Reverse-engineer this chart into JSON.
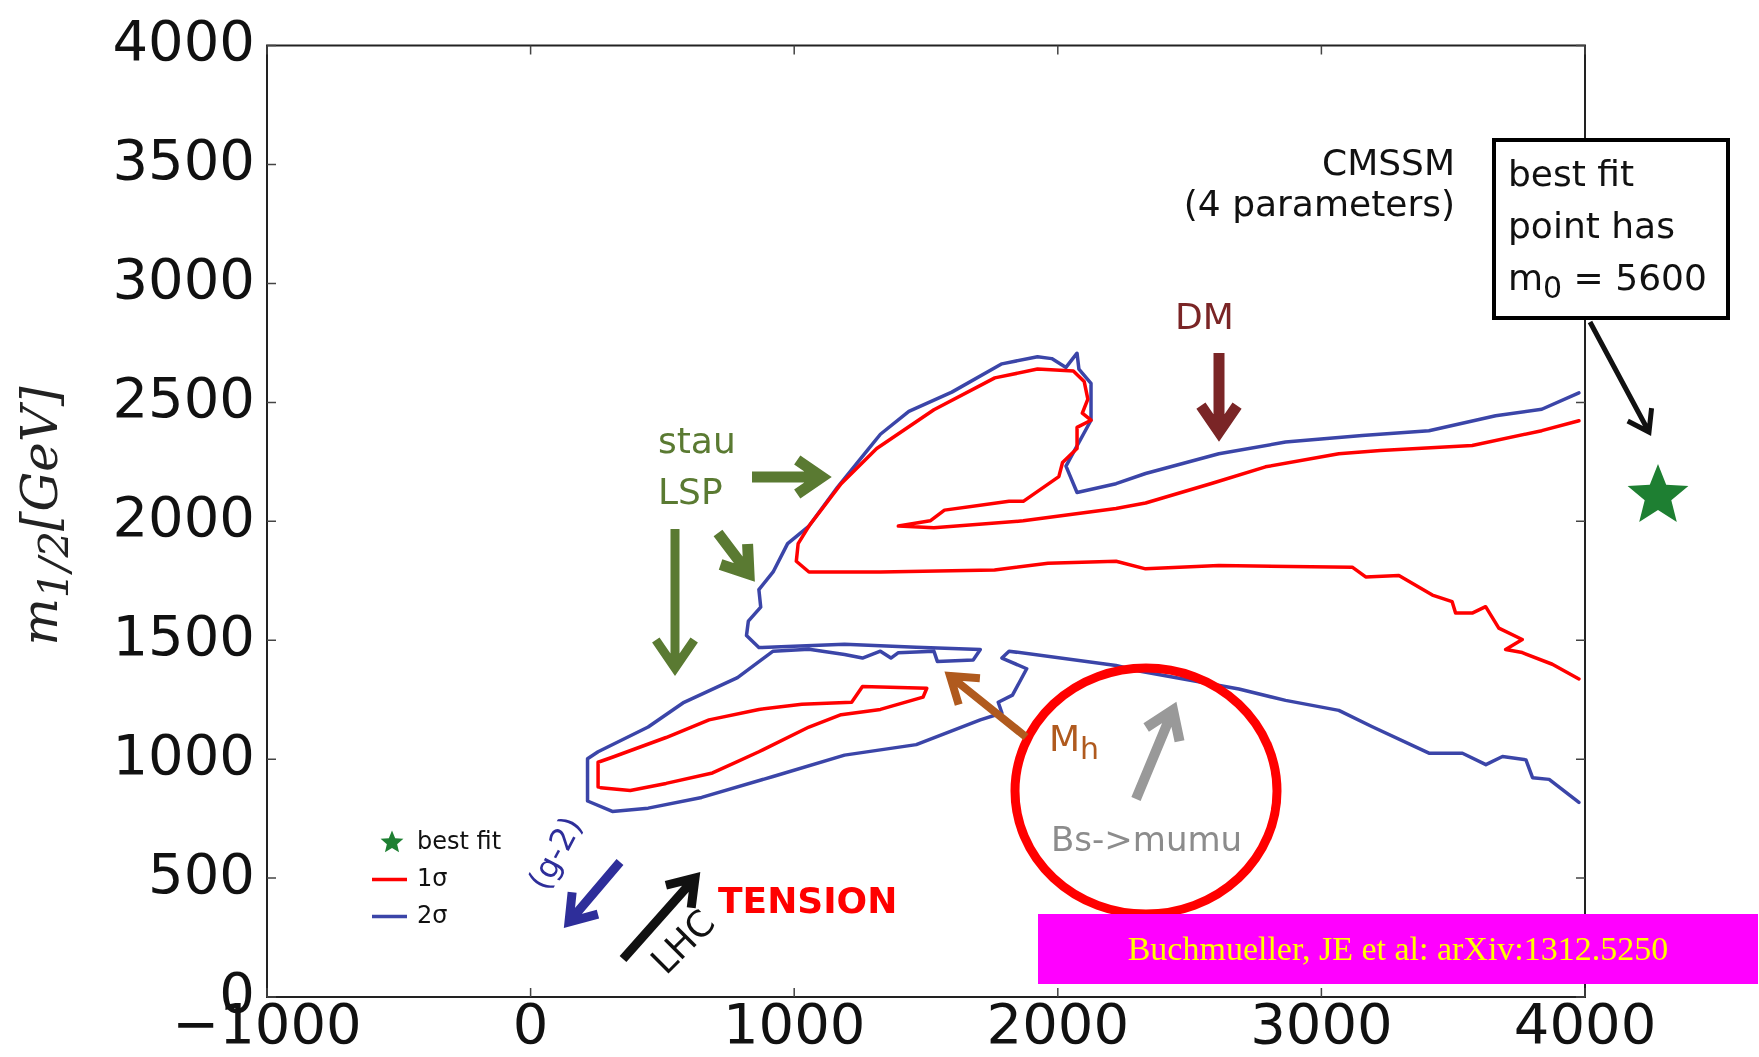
{
  "chart_data": {
    "type": "line",
    "ylabel": "m$_{1/2}$[GeV]",
    "xlim": [
      -1000,
      4000
    ],
    "xticks": [
      {
        "value": -1000,
        "label": "−1000"
      },
      0,
      1000,
      2000,
      3000,
      4000
    ],
    "ylim": [
      0,
      4000
    ],
    "yticks": [
      0,
      500,
      1000,
      1500,
      2000,
      2500,
      3000,
      3500,
      4000
    ],
    "grid": false,
    "legend": "bottom left",
    "marker": "none",
    "line_style": "solid",
    "series": [
      {
        "name": "1σ",
        "color": "#ff0000",
        "x": [
          3977,
          3836,
          3572,
          3224,
          3066,
          2788,
          2586,
          2333,
          2221,
          1869,
          1530,
          1395,
          1516,
          1570,
          1815,
          1869,
          2004,
          2018,
          2073,
          2073,
          2126,
          2093,
          2114,
          2100,
          2059,
          1923,
          1761,
          1530,
          1313,
          1178,
          1056,
          1015,
          1008,
          1056,
          1327,
          1760,
          1963,
          2221,
          2333,
          2611,
          3117,
          3168,
          3294,
          3421,
          3496,
          3509,
          3572,
          3623,
          3673,
          3762,
          3699,
          3762,
          3876,
          3977
        ],
        "values": [
          2423,
          2381,
          2319,
          2298,
          2284,
          2229,
          2160,
          2077,
          2054,
          2002,
          1973,
          1980,
          2002,
          2047,
          2084,
          2084,
          2188,
          2247,
          2306,
          2395,
          2425,
          2455,
          2514,
          2588,
          2632,
          2640,
          2603,
          2469,
          2306,
          2158,
          1980,
          1906,
          1832,
          1787,
          1787,
          1795,
          1824,
          1832,
          1800,
          1814,
          1807,
          1766,
          1772,
          1690,
          1662,
          1614,
          1614,
          1641,
          1551,
          1503,
          1461,
          1448,
          1399,
          1337
        ]
      },
      {
        "color": "#ff0000",
        "x": [
          256,
          256,
          310,
          514,
          677,
          866,
          1029,
          1218,
          1259,
          1503,
          1489,
          1327,
          1178,
          1056,
          866,
          690,
          514,
          378,
          266
        ],
        "values": [
          883,
          987,
          1008,
          1091,
          1165,
          1209,
          1231,
          1239,
          1305,
          1298,
          1261,
          1209,
          1187,
          1135,
          1031,
          942,
          898,
          868,
          880
        ]
      },
      {
        "name": "2σ",
        "color": "#3b45a8",
        "x": [
          3977,
          3836,
          3661,
          3408,
          3155,
          2864,
          2611,
          2333,
          2221,
          2073,
          2031,
          2126,
          2126,
          2080,
          2073,
          2031,
          1977,
          1923,
          1788,
          1598,
          1435,
          1327,
          1272,
          1164,
          1056,
          975,
          920,
          866,
          873,
          826,
          819,
          866,
          1191,
          1463,
          1706,
          1679,
          1543,
          1530,
          1394,
          1367,
          1327,
          1259,
          1191,
          1056,
          920,
          785,
          582,
          446,
          256,
          216,
          216,
          310,
          446,
          649,
          920,
          1191,
          1463,
          1706,
          1788,
          1774,
          1828,
          1882,
          1788,
          1815,
          2221,
          2308,
          2687,
          2864,
          3066,
          3193,
          3408,
          3535,
          3624,
          3687,
          3776,
          3801,
          3864,
          3977
        ],
        "values": [
          2540,
          2471,
          2444,
          2381,
          2361,
          2333,
          2284,
          2201,
          2158,
          2121,
          2232,
          2425,
          2580,
          2640,
          2707,
          2647,
          2684,
          2692,
          2662,
          2543,
          2462,
          2366,
          2291,
          2143,
          1980,
          1906,
          1787,
          1713,
          1639,
          1580,
          1520,
          1469,
          1483,
          1470,
          1461,
          1417,
          1411,
          1454,
          1447,
          1425,
          1454,
          1425,
          1440,
          1462,
          1454,
          1343,
          1239,
          1135,
          1031,
          1002,
          824,
          780,
          794,
          839,
          927,
          1017,
          1061,
          1165,
          1194,
          1239,
          1269,
          1380,
          1425,
          1454,
          1394,
          1371,
          1295,
          1247,
          1205,
          1136,
          1025,
          1025,
          977,
          1011,
          997,
          922,
          915,
          818
        ]
      },
      {
        "name": "best fit",
        "type": "scatter",
        "marker": "star",
        "color": "#1e7f32"
      }
    ],
    "annotations": [
      "CMSSM\n(4 parameters)",
      "best fit\npoint has\nm$_{0}$ = 5600",
      "DM",
      "stau\nLSP",
      "M$_{h}$",
      "Bs->mumu",
      "(g-2)",
      "LHC",
      "TENSION",
      "Buchmueller, JE et al: arXiv:1312.5250"
    ]
  }
}
